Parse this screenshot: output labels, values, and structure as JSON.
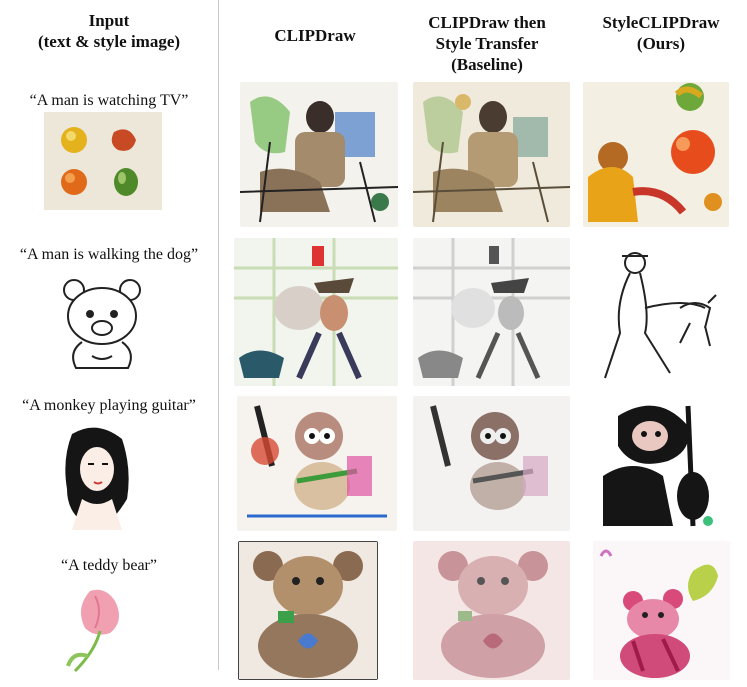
{
  "headers": {
    "input": [
      "Input",
      "(text & style image)"
    ],
    "clipdraw": [
      "CLIPDraw"
    ],
    "baseline": [
      "CLIPDraw then",
      "Style Transfer",
      "(Baseline)"
    ],
    "ours": [
      "StyleCLIPDraw",
      "(Ours)"
    ]
  },
  "rows": [
    {
      "prompt": "“A man is watching TV”",
      "style_image": "still-life-fruit"
    },
    {
      "prompt": "“A man is walking the dog”",
      "style_image": "teddy-bear-line-drawing"
    },
    {
      "prompt": "“A monkey playing guitar”",
      "style_image": "woman-portrait-ink"
    },
    {
      "prompt": "“A teddy bear”",
      "style_image": "pink-tulip-watercolor"
    }
  ]
}
